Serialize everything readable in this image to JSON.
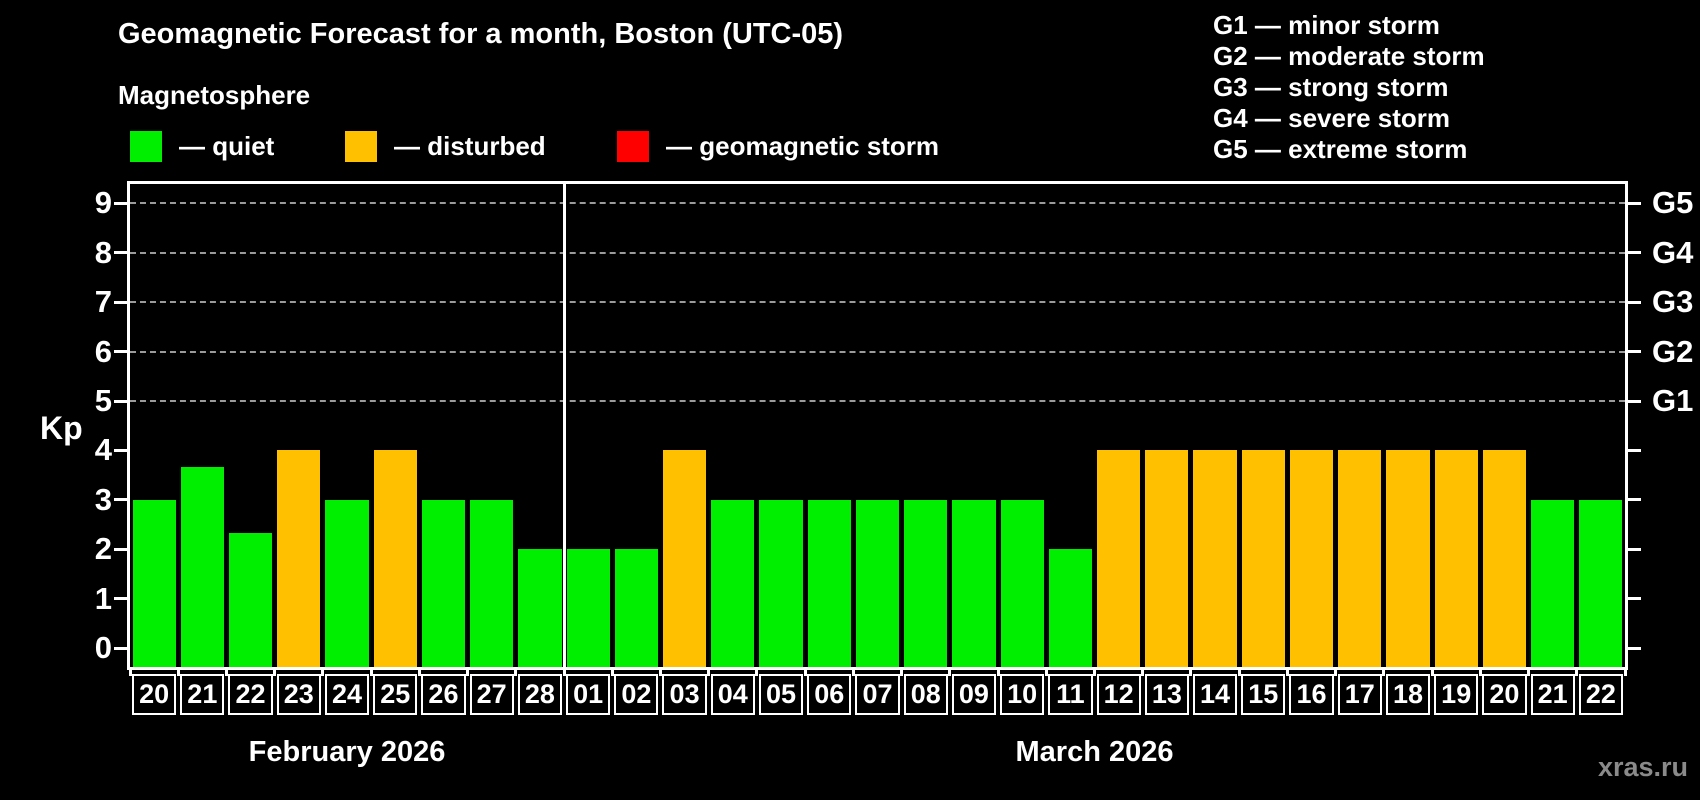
{
  "title": "Geomagnetic Forecast for a month, Boston (UTC-05)",
  "subtitle": "Magnetosphere",
  "legend": {
    "items": [
      {
        "status": "quiet",
        "label": "— quiet",
        "color": "#00ee00"
      },
      {
        "status": "disturbed",
        "label": "— disturbed",
        "color": "#ffc000"
      },
      {
        "status": "storm",
        "label": "— geomagnetic storm",
        "color": "#ff0000"
      }
    ]
  },
  "storm_scale": {
    "lines": [
      "G1 — minor storm",
      "G2 — moderate storm",
      "G3 — strong storm",
      "G4 — severe storm",
      "G5 — extreme storm"
    ]
  },
  "watermark": "xras.ru",
  "chart_data": {
    "type": "bar",
    "title": "Geomagnetic Forecast for a month, Boston (UTC-05)",
    "ylabel": "Kp",
    "xlabel": "",
    "ylim": [
      0,
      9
    ],
    "yticks": [
      0,
      1,
      2,
      3,
      4,
      5,
      6,
      7,
      8,
      9
    ],
    "gridlines_at": [
      5,
      6,
      7,
      8,
      9
    ],
    "grid_color": "#9b9b9b",
    "axis_color": "#ffffff",
    "background": "#000000",
    "legend_position": "top",
    "right_axis_labels": [
      {
        "value": 5,
        "label": "G1"
      },
      {
        "value": 6,
        "label": "G2"
      },
      {
        "value": 7,
        "label": "G3"
      },
      {
        "value": 8,
        "label": "G4"
      },
      {
        "value": 9,
        "label": "G5"
      }
    ],
    "months": [
      {
        "label": "February 2026",
        "days": 9
      },
      {
        "label": "March 2026",
        "days": 22
      }
    ],
    "points": [
      {
        "day": "20",
        "kp": 3,
        "status": "quiet"
      },
      {
        "day": "21",
        "kp": 3.67,
        "status": "quiet"
      },
      {
        "day": "22",
        "kp": 2.33,
        "status": "quiet"
      },
      {
        "day": "23",
        "kp": 4,
        "status": "disturbed"
      },
      {
        "day": "24",
        "kp": 3,
        "status": "quiet"
      },
      {
        "day": "25",
        "kp": 4,
        "status": "disturbed"
      },
      {
        "day": "26",
        "kp": 3,
        "status": "quiet"
      },
      {
        "day": "27",
        "kp": 3,
        "status": "quiet"
      },
      {
        "day": "28",
        "kp": 2,
        "status": "quiet"
      },
      {
        "day": "01",
        "kp": 2,
        "status": "quiet"
      },
      {
        "day": "02",
        "kp": 2,
        "status": "quiet"
      },
      {
        "day": "03",
        "kp": 4,
        "status": "disturbed"
      },
      {
        "day": "04",
        "kp": 3,
        "status": "quiet"
      },
      {
        "day": "05",
        "kp": 3,
        "status": "quiet"
      },
      {
        "day": "06",
        "kp": 3,
        "status": "quiet"
      },
      {
        "day": "07",
        "kp": 3,
        "status": "quiet"
      },
      {
        "day": "08",
        "kp": 3,
        "status": "quiet"
      },
      {
        "day": "09",
        "kp": 3,
        "status": "quiet"
      },
      {
        "day": "10",
        "kp": 3,
        "status": "quiet"
      },
      {
        "day": "11",
        "kp": 2,
        "status": "quiet"
      },
      {
        "day": "12",
        "kp": 4,
        "status": "disturbed"
      },
      {
        "day": "13",
        "kp": 4,
        "status": "disturbed"
      },
      {
        "day": "14",
        "kp": 4,
        "status": "disturbed"
      },
      {
        "day": "15",
        "kp": 4,
        "status": "disturbed"
      },
      {
        "day": "16",
        "kp": 4,
        "status": "disturbed"
      },
      {
        "day": "17",
        "kp": 4,
        "status": "disturbed"
      },
      {
        "day": "18",
        "kp": 4,
        "status": "disturbed"
      },
      {
        "day": "19",
        "kp": 4,
        "status": "disturbed"
      },
      {
        "day": "20",
        "kp": 4,
        "status": "disturbed"
      },
      {
        "day": "21",
        "kp": 3,
        "status": "quiet"
      },
      {
        "day": "22",
        "kp": 3,
        "status": "quiet"
      }
    ]
  }
}
